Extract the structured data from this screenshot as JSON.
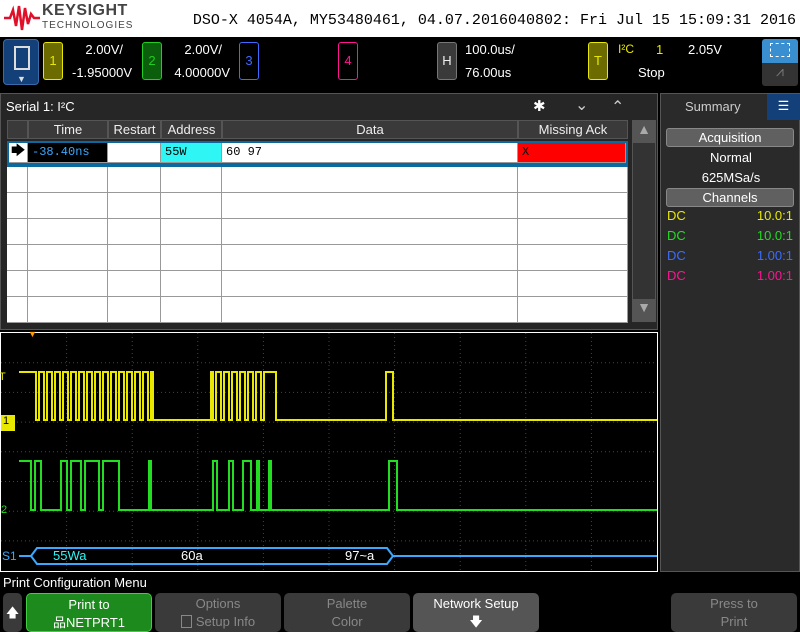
{
  "header": {
    "brand": "KEYSIGHT",
    "brand_sub": "TECHNOLOGIES",
    "title": "DSO-X 4054A, MY53480461, 04.07.2016040802: Fri Jul 15 15:09:31 2016"
  },
  "channels": [
    {
      "num": "1",
      "scale": "2.00V/",
      "offset": "-1.95000V",
      "color": "#e8e800"
    },
    {
      "num": "2",
      "scale": "2.00V/",
      "offset": "4.00000V",
      "color": "#22cc22"
    },
    {
      "num": "3",
      "color": "#3b6cff"
    },
    {
      "num": "4",
      "color": "#ff1493"
    }
  ],
  "horizontal": {
    "label": "H",
    "scale": "100.0us/",
    "delay": "76.00us"
  },
  "trigger": {
    "label": "T",
    "type": "I²C",
    "source": "1",
    "level": "2.05V",
    "status": "Stop"
  },
  "serial": {
    "title": "Serial 1: I²C",
    "columns": [
      "Time",
      "Restart",
      "Address",
      "Data",
      "Missing Ack"
    ],
    "rows": [
      {
        "time": "-38.40ns",
        "restart": "",
        "address": "55W",
        "data": "60 97",
        "missing_ack": "X"
      }
    ]
  },
  "side": {
    "tab": "Summary",
    "acquisition_label": "Acquisition",
    "mode": "Normal",
    "rate": "625MSa/s",
    "channels_label": "Channels",
    "channels": [
      {
        "coupling": "DC",
        "probe": "10.0:1",
        "color": "#e8e800"
      },
      {
        "coupling": "DC",
        "probe": "10.0:1",
        "color": "#22dd22"
      },
      {
        "coupling": "DC",
        "probe": "1.00:1",
        "color": "#3b6cff"
      },
      {
        "coupling": "DC",
        "probe": "1.00:1",
        "color": "#ff1493"
      }
    ]
  },
  "scope": {
    "ch1_marker": "1",
    "ch2_marker": "2",
    "trig_marker": "T",
    "bus_label": "S1",
    "bus_decode": [
      "55Wa",
      "60a",
      "97~a"
    ]
  },
  "menu": {
    "title": "Print Configuration Menu",
    "keys": [
      {
        "line1": "Print to",
        "line2": "NETPRT1"
      },
      {
        "line1": "Options",
        "line2": "Setup Info"
      },
      {
        "line1": "Palette",
        "line2": "Color"
      },
      {
        "line1": "Network Setup",
        "line2": ""
      },
      {
        "line1": "Press to",
        "line2": "Print"
      }
    ]
  }
}
